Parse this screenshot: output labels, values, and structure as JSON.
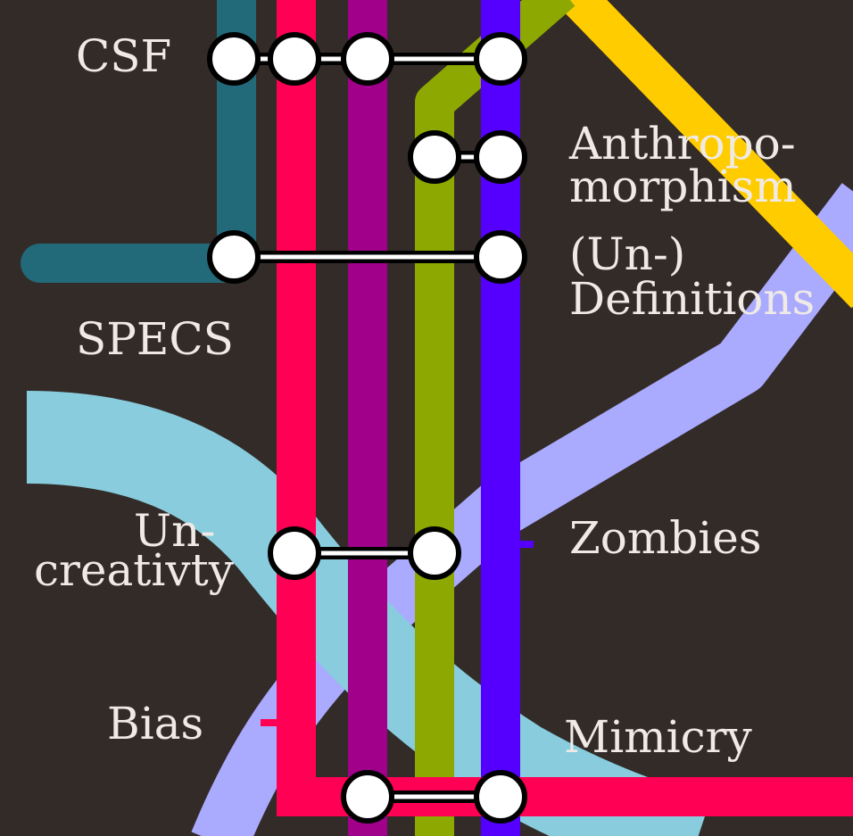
{
  "map": {
    "background": "#332b28",
    "label_color": "#efeae6",
    "lines": [
      {
        "id": "teal",
        "color": "#226a7a"
      },
      {
        "id": "red",
        "color": "#ff0055"
      },
      {
        "id": "magenta",
        "color": "#a0008a"
      },
      {
        "id": "olive",
        "color": "#8da800"
      },
      {
        "id": "violet",
        "color": "#5500ff"
      },
      {
        "id": "yellow",
        "color": "#ffcc00"
      },
      {
        "id": "lavender",
        "color": "#aaaaff"
      },
      {
        "id": "lightblue",
        "color": "#88ccdd"
      }
    ],
    "stations": {
      "csf": "CSF",
      "anthropo_1": "Anthropo-",
      "anthropo_2": "morphism",
      "undef_1": "(Un-)",
      "undef_2": "Definitions",
      "specs": "SPECS",
      "uncreat_1": "Un-",
      "uncreat_2": "creativty",
      "zombies": "Zombies",
      "bias": "Bias",
      "mimicry": "Mimicry"
    }
  }
}
